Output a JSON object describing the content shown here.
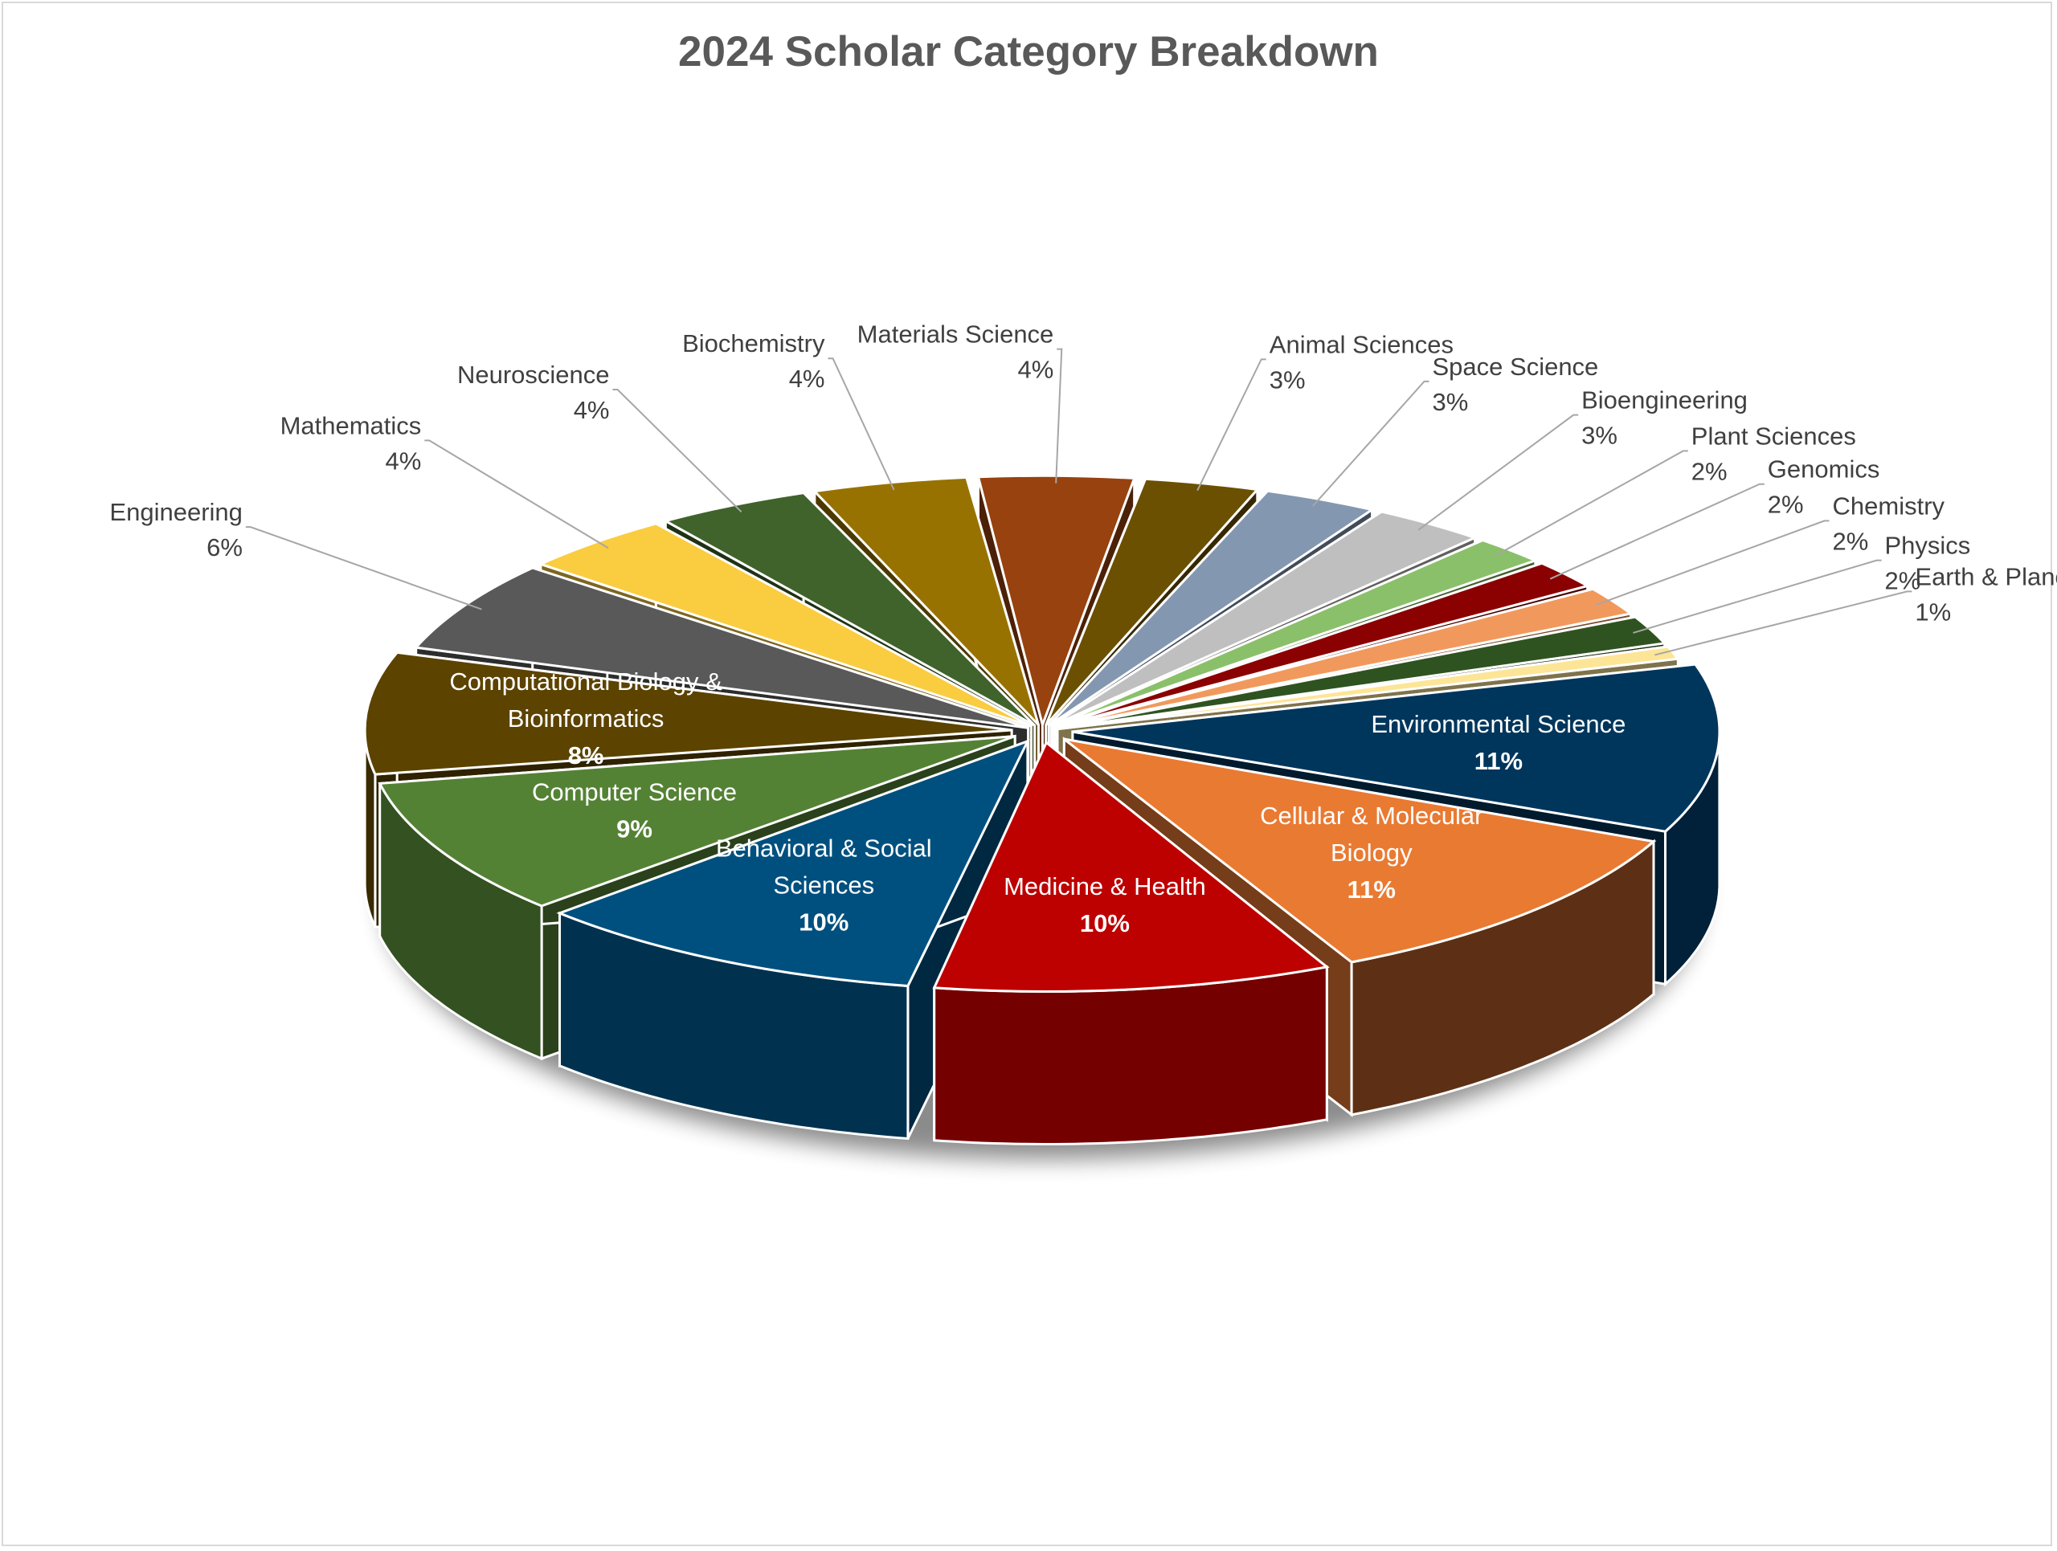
{
  "chart_data": {
    "type": "pie",
    "style": "3d-exploded",
    "title": "2024 Scholar Category Breakdown",
    "slices": [
      {
        "label": "Environmental Science",
        "lines": [
          "Environmental Science"
        ],
        "pct_label": "11%",
        "value": 11,
        "color": "#00365c",
        "label_style": "inside-light"
      },
      {
        "label": "Cellular & Molecular Biology",
        "lines": [
          "Cellular & Molecular",
          "Biology"
        ],
        "pct_label": "11%",
        "value": 11,
        "color": "#e97a32",
        "side_color": "#5d3015",
        "label_style": "inside-light"
      },
      {
        "label": "Medicine & Health",
        "lines": [
          "Medicine & Health"
        ],
        "pct_label": "10%",
        "value": 10,
        "color": "#bd0000",
        "label_style": "inside-light"
      },
      {
        "label": "Behavioral & Social Sciences",
        "lines": [
          "Behavioral & Social",
          "Sciences"
        ],
        "pct_label": "10%",
        "value": 10,
        "color": "#00507f",
        "label_style": "inside-light"
      },
      {
        "label": "Computer Science",
        "lines": [
          "Computer Science"
        ],
        "pct_label": "9%",
        "value": 9,
        "color": "#548235",
        "label_style": "inside-light"
      },
      {
        "label": "Computational Biology & Bioinformatics",
        "lines": [
          "Computational Biology &",
          "Bioinformatics"
        ],
        "pct_label": "8%",
        "value": 8,
        "color": "#5c4300",
        "label_style": "inside-light"
      },
      {
        "label": "Engineering",
        "lines": [
          "Engineering"
        ],
        "pct_label": "6%",
        "value": 6,
        "color": "#595959",
        "label_style": "callout"
      },
      {
        "label": "Mathematics",
        "lines": [
          "Mathematics"
        ],
        "pct_label": "4%",
        "value": 4,
        "color": "#facc40",
        "label_style": "callout"
      },
      {
        "label": "Neuroscience",
        "lines": [
          "Neuroscience"
        ],
        "pct_label": "4%",
        "value": 4,
        "color": "#3f632b",
        "label_style": "callout"
      },
      {
        "label": "Biochemistry",
        "lines": [
          "Biochemistry"
        ],
        "pct_label": "4%",
        "value": 4,
        "color": "#987200",
        "label_style": "callout"
      },
      {
        "label": "Materials Science",
        "lines": [
          "Materials Science"
        ],
        "pct_label": "4%",
        "value": 4,
        "color": "#97420f",
        "label_style": "callout"
      },
      {
        "label": "Animal Sciences",
        "lines": [
          "Animal Sciences"
        ],
        "pct_label": "3%",
        "value": 3,
        "color": "#6b5002",
        "label_style": "callout"
      },
      {
        "label": "Space Science",
        "lines": [
          "Space Science"
        ],
        "pct_label": "3%",
        "value": 3,
        "color": "#8497b0",
        "label_style": "callout"
      },
      {
        "label": "Bioengineering",
        "lines": [
          "Bioengineering"
        ],
        "pct_label": "3%",
        "value": 3,
        "color": "#bfbfbf",
        "label_style": "callout"
      },
      {
        "label": "Plant Sciences",
        "lines": [
          "Plant Sciences"
        ],
        "pct_label": "2%",
        "value": 2,
        "color": "#8bc06a",
        "label_style": "callout"
      },
      {
        "label": "Genomics",
        "lines": [
          "Genomics"
        ],
        "pct_label": "2%",
        "value": 2,
        "color": "#8b0000",
        "label_style": "callout"
      },
      {
        "label": "Chemistry",
        "lines": [
          "Chemistry"
        ],
        "pct_label": "2%",
        "value": 2,
        "color": "#f1995c",
        "label_style": "callout"
      },
      {
        "label": "Physics",
        "lines": [
          "Physics"
        ],
        "pct_label": "2%",
        "value": 2,
        "color": "#2f5320",
        "label_style": "callout"
      },
      {
        "label": "Earth & Planetary",
        "lines": [
          "Earth & Planetary"
        ],
        "pct_label": "1%",
        "value": 1,
        "color": "#fde597",
        "label_style": "callout"
      }
    ],
    "legend": "none",
    "data_labels": "category name and percentage"
  }
}
